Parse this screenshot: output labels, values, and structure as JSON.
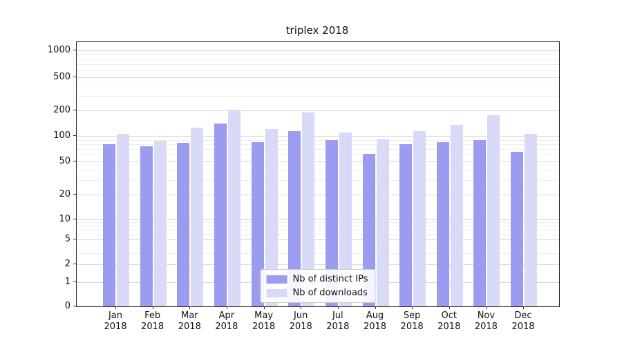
{
  "chart_data": {
    "type": "bar",
    "title": "triplex 2018",
    "categories": [
      "Jan",
      "Feb",
      "Mar",
      "Apr",
      "May",
      "Jun",
      "Jul",
      "Aug",
      "Sep",
      "Oct",
      "Nov",
      "Dec"
    ],
    "year_label": "2018",
    "series": [
      {
        "name": "Nb of distinct IPs",
        "color": "#9b9bef",
        "values": [
          80,
          75,
          83,
          140,
          85,
          115,
          90,
          62,
          80,
          84,
          90,
          65
        ]
      },
      {
        "name": "Nb of downloads",
        "color": "#d9d9f8",
        "values": [
          105,
          88,
          125,
          205,
          120,
          190,
          110,
          92,
          115,
          135,
          175,
          105
        ]
      }
    ],
    "yticks": [
      0,
      1,
      2,
      5,
      10,
      20,
      50,
      100,
      200,
      500,
      1000
    ],
    "yscale": "symlog",
    "ylim": [
      0,
      1100
    ],
    "xlabel": "",
    "ylabel": "",
    "grid": true,
    "legend_position": "lower center",
    "grid_major_color": "#d7d7d7",
    "grid_minor_color": "#eeeeee"
  }
}
